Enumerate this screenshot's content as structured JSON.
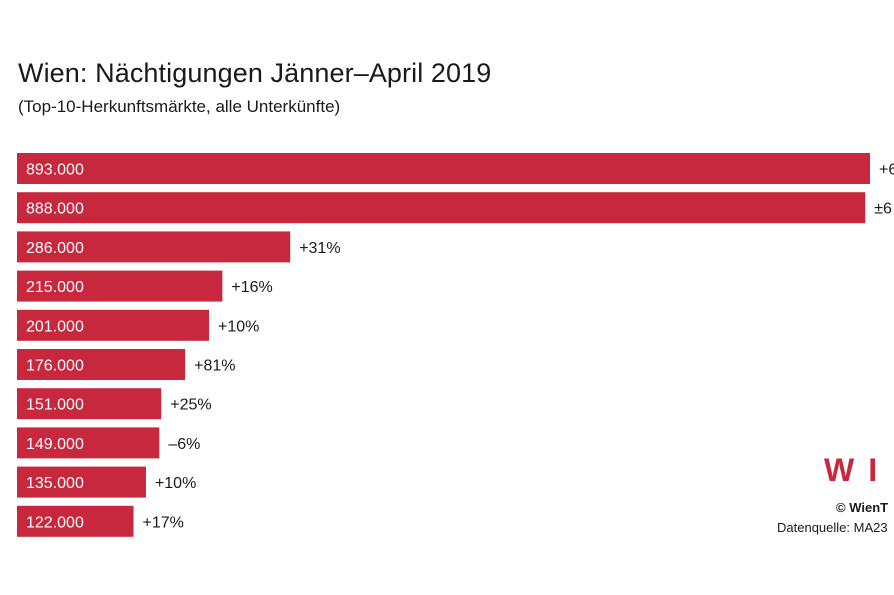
{
  "header": {
    "title": "Wien: Nächtigungen Jänner–April 2019",
    "subtitle": "(Top-10-Herkunftsmärkte, alle Unterkünfte)"
  },
  "footer": {
    "logo_text": "WI",
    "copyright": "© WienT",
    "source": "Datenquelle: MA23"
  },
  "colors": {
    "bar": "#c8283e",
    "text": "#1a1a1a",
    "bar_text": "#ffffff"
  },
  "chart_data": {
    "type": "bar",
    "orientation": "horizontal",
    "title": "Wien: Nächtigungen Jänner–April 2019",
    "subtitle": "(Top-10-Herkunftsmärkte, alle Unterkünfte)",
    "grid": false,
    "values": [
      893000,
      888000,
      286000,
      215000,
      201000,
      176000,
      151000,
      149000,
      135000,
      122000
    ],
    "value_labels": [
      "893.000",
      "888.000",
      "286.000",
      "215.000",
      "201.000",
      "176.000",
      "151.000",
      "149.000",
      "135.000",
      "122.000"
    ],
    "change_labels": [
      "+6",
      "±6",
      "+31%",
      "+16%",
      "+10%",
      "+81%",
      "+25%",
      "–6%",
      "+10%",
      "+17%"
    ]
  }
}
